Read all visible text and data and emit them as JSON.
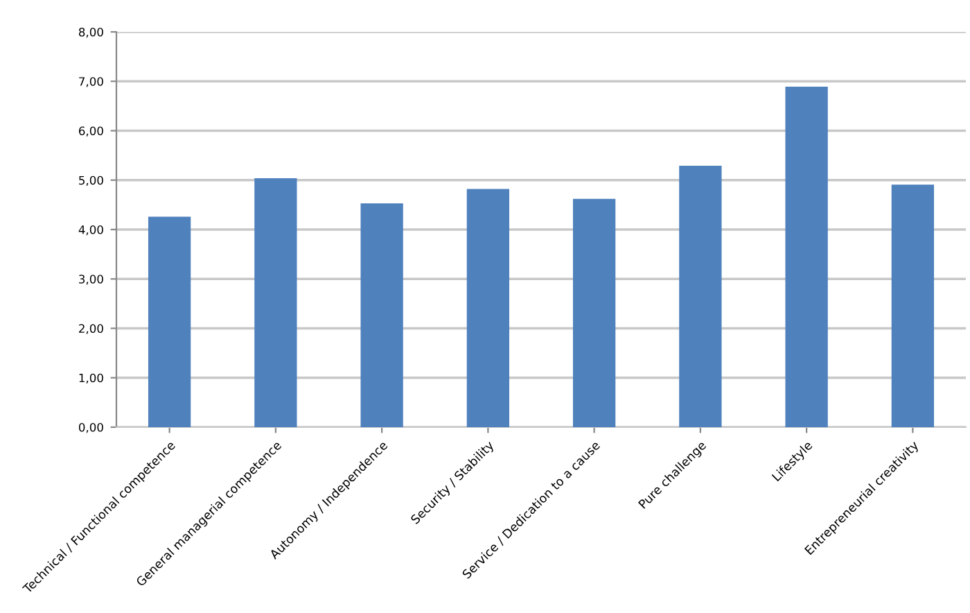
{
  "chart_data": {
    "type": "bar",
    "categories": [
      "Technical / Functional competence",
      "General managerial competence",
      "Autonomy / Independence",
      "Security / Stability",
      "Service / Dedication to a cause",
      "Pure challenge",
      "Lifestyle",
      "Entrepreneurial creativity"
    ],
    "values": [
      4.26,
      5.04,
      4.53,
      4.82,
      4.62,
      5.29,
      6.89,
      4.91
    ],
    "color": "#4f81bd",
    "ylim": [
      0,
      8
    ],
    "yticks": [
      {
        "value": 0,
        "label": "0,00"
      },
      {
        "value": 1,
        "label": "1,00"
      },
      {
        "value": 2,
        "label": "2,00"
      },
      {
        "value": 3,
        "label": "3,00"
      },
      {
        "value": 4,
        "label": "4,00"
      },
      {
        "value": 5,
        "label": "5,00"
      },
      {
        "value": 6,
        "label": "6,00"
      },
      {
        "value": 7,
        "label": "7,00"
      },
      {
        "value": 8,
        "label": "8,00"
      }
    ],
    "grid": "y"
  }
}
